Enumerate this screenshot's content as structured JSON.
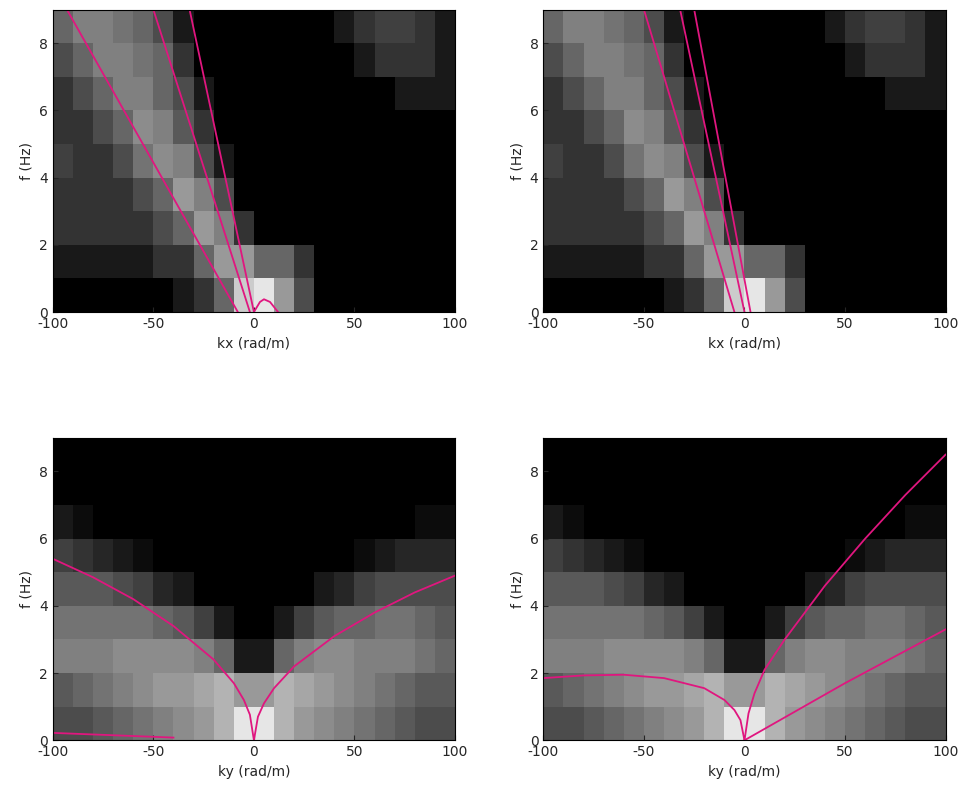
{
  "chart_data": [
    {
      "type": "heatmap",
      "x_label": "kx (rad/m)",
      "y_label": "f (Hz)",
      "xlim": [
        -100,
        100
      ],
      "ylim": [
        0,
        9
      ],
      "xticks": [
        -100,
        -50,
        0,
        50,
        100
      ],
      "yticks": [
        0,
        2,
        4,
        6,
        8
      ],
      "xbins": [
        -100,
        -90,
        -80,
        -70,
        -60,
        -50,
        -40,
        -30,
        -20,
        -10,
        0,
        10,
        20,
        30,
        40,
        50,
        60,
        70,
        80,
        90,
        100
      ],
      "ybins": [
        0,
        1,
        2,
        3,
        4,
        5,
        6,
        7,
        8,
        9
      ],
      "clim": [
        0,
        1
      ],
      "cells": [
        [
          0,
          0,
          0,
          0,
          0,
          0,
          0.1,
          0.2,
          0.4,
          0.8,
          0.9,
          0.6,
          0.3,
          0,
          0,
          0,
          0,
          0,
          0,
          0
        ],
        [
          0.1,
          0.1,
          0.1,
          0.1,
          0.1,
          0.2,
          0.2,
          0.4,
          0.6,
          0.6,
          0.4,
          0.4,
          0.2,
          0,
          0,
          0,
          0,
          0,
          0,
          0
        ],
        [
          0.2,
          0.2,
          0.2,
          0.2,
          0.2,
          0.3,
          0.4,
          0.6,
          0.5,
          0.2,
          0,
          0,
          0,
          0,
          0,
          0,
          0,
          0,
          0,
          0
        ],
        [
          0.2,
          0.2,
          0.2,
          0.2,
          0.3,
          0.4,
          0.6,
          0.5,
          0.3,
          0,
          0,
          0,
          0,
          0,
          0,
          0,
          0,
          0,
          0,
          0
        ],
        [
          0.25,
          0.2,
          0.2,
          0.3,
          0.45,
          0.55,
          0.5,
          0.3,
          0.1,
          0,
          0,
          0,
          0,
          0,
          0,
          0,
          0,
          0,
          0,
          0
        ],
        [
          0.2,
          0.2,
          0.3,
          0.4,
          0.55,
          0.5,
          0.35,
          0.2,
          0,
          0,
          0,
          0,
          0,
          0,
          0,
          0,
          0,
          0,
          0,
          0
        ],
        [
          0.2,
          0.3,
          0.4,
          0.5,
          0.5,
          0.4,
          0.3,
          0.1,
          0,
          0,
          0,
          0,
          0,
          0,
          0,
          0,
          0,
          0.1,
          0.1,
          0.1
        ],
        [
          0.3,
          0.4,
          0.5,
          0.5,
          0.45,
          0.4,
          0.2,
          0,
          0,
          0,
          0,
          0,
          0,
          0,
          0,
          0.1,
          0.2,
          0.2,
          0.2,
          0.1
        ],
        [
          0.4,
          0.5,
          0.5,
          0.45,
          0.4,
          0.3,
          0.1,
          0,
          0,
          0,
          0,
          0,
          0,
          0,
          0.1,
          0.2,
          0.25,
          0.25,
          0.2,
          0.1
        ]
      ],
      "series": [
        {
          "color": "#e0167f",
          "x": [
            -8,
            -93
          ],
          "values": [
            0,
            9
          ]
        },
        {
          "color": "#e0167f",
          "x": [
            -2,
            -50
          ],
          "values": [
            0,
            9
          ]
        },
        {
          "color": "#e0167f",
          "x": [
            0,
            -32
          ],
          "values": [
            0,
            9
          ]
        },
        {
          "color": "#e0167f",
          "x": [
            0,
            3,
            5,
            8,
            12
          ],
          "values": [
            0,
            0.3,
            0.38,
            0.3,
            0
          ]
        }
      ]
    },
    {
      "type": "heatmap",
      "x_label": "kx (rad/m)",
      "y_label": "f (Hz)",
      "xlim": [
        -100,
        100
      ],
      "ylim": [
        0,
        9
      ],
      "xticks": [
        -100,
        -50,
        0,
        50,
        100
      ],
      "yticks": [
        0,
        2,
        4,
        6,
        8
      ],
      "xbins": [
        -100,
        -90,
        -80,
        -70,
        -60,
        -50,
        -40,
        -30,
        -20,
        -10,
        0,
        10,
        20,
        30,
        40,
        50,
        60,
        70,
        80,
        90,
        100
      ],
      "ybins": [
        0,
        1,
        2,
        3,
        4,
        5,
        6,
        7,
        8,
        9
      ],
      "clim": [
        0,
        1
      ],
      "cells": [
        [
          0,
          0,
          0,
          0,
          0,
          0,
          0.1,
          0.2,
          0.4,
          0.8,
          0.9,
          0.6,
          0.3,
          0,
          0,
          0,
          0,
          0,
          0,
          0
        ],
        [
          0.1,
          0.1,
          0.1,
          0.1,
          0.1,
          0.2,
          0.2,
          0.4,
          0.6,
          0.6,
          0.4,
          0.4,
          0.2,
          0,
          0,
          0,
          0,
          0,
          0,
          0
        ],
        [
          0.2,
          0.2,
          0.2,
          0.2,
          0.2,
          0.3,
          0.4,
          0.6,
          0.5,
          0.2,
          0,
          0,
          0,
          0,
          0,
          0,
          0,
          0,
          0,
          0
        ],
        [
          0.2,
          0.2,
          0.2,
          0.2,
          0.3,
          0.4,
          0.6,
          0.5,
          0.3,
          0,
          0,
          0,
          0,
          0,
          0,
          0,
          0,
          0,
          0,
          0
        ],
        [
          0.25,
          0.2,
          0.2,
          0.3,
          0.45,
          0.55,
          0.5,
          0.3,
          0.1,
          0,
          0,
          0,
          0,
          0,
          0,
          0,
          0,
          0,
          0,
          0
        ],
        [
          0.2,
          0.2,
          0.3,
          0.4,
          0.55,
          0.5,
          0.35,
          0.2,
          0,
          0,
          0,
          0,
          0,
          0,
          0,
          0,
          0,
          0,
          0,
          0
        ],
        [
          0.2,
          0.3,
          0.4,
          0.5,
          0.5,
          0.4,
          0.3,
          0.1,
          0,
          0,
          0,
          0,
          0,
          0,
          0,
          0,
          0,
          0.1,
          0.1,
          0.1
        ],
        [
          0.3,
          0.4,
          0.5,
          0.5,
          0.45,
          0.4,
          0.2,
          0,
          0,
          0,
          0,
          0,
          0,
          0,
          0,
          0.1,
          0.2,
          0.2,
          0.2,
          0.1
        ],
        [
          0.4,
          0.5,
          0.5,
          0.45,
          0.4,
          0.3,
          0.1,
          0,
          0,
          0,
          0,
          0,
          0,
          0,
          0.1,
          0.2,
          0.25,
          0.25,
          0.2,
          0.1
        ]
      ],
      "series": [
        {
          "color": "#e0167f",
          "x": [
            -5,
            -50
          ],
          "values": [
            0,
            9
          ]
        },
        {
          "color": "#e0167f",
          "x": [
            0,
            -32
          ],
          "values": [
            0,
            9
          ]
        },
        {
          "color": "#e0167f",
          "x": [
            3,
            -25
          ],
          "values": [
            0,
            9
          ]
        }
      ]
    },
    {
      "type": "heatmap",
      "x_label": "ky (rad/m)",
      "y_label": "f (Hz)",
      "xlim": [
        -100,
        100
      ],
      "ylim": [
        0,
        9
      ],
      "xticks": [
        -100,
        -50,
        0,
        50,
        100
      ],
      "yticks": [
        0,
        2,
        4,
        6,
        8
      ],
      "xbins": [
        -100,
        -90,
        -80,
        -70,
        -60,
        -50,
        -40,
        -30,
        -20,
        -10,
        0,
        10,
        20,
        30,
        40,
        50,
        60,
        70,
        80,
        90,
        100
      ],
      "ybins": [
        0,
        1,
        2,
        3,
        4,
        5,
        6,
        7,
        8,
        9
      ],
      "clim": [
        0,
        1
      ],
      "cells": [
        [
          0.3,
          0.3,
          0.35,
          0.4,
          0.45,
          0.5,
          0.55,
          0.6,
          0.7,
          0.9,
          0.9,
          0.7,
          0.6,
          0.55,
          0.5,
          0.45,
          0.4,
          0.35,
          0.3,
          0.3
        ],
        [
          0.35,
          0.4,
          0.45,
          0.5,
          0.55,
          0.6,
          0.6,
          0.65,
          0.7,
          0.6,
          0.6,
          0.7,
          0.65,
          0.6,
          0.55,
          0.5,
          0.45,
          0.4,
          0.35,
          0.35
        ],
        [
          0.5,
          0.5,
          0.5,
          0.55,
          0.55,
          0.55,
          0.55,
          0.5,
          0.4,
          0.1,
          0.1,
          0.4,
          0.5,
          0.55,
          0.55,
          0.5,
          0.5,
          0.5,
          0.45,
          0.4
        ],
        [
          0.45,
          0.45,
          0.45,
          0.45,
          0.45,
          0.4,
          0.35,
          0.25,
          0.1,
          0,
          0,
          0.1,
          0.25,
          0.35,
          0.4,
          0.4,
          0.45,
          0.45,
          0.4,
          0.35
        ],
        [
          0.35,
          0.35,
          0.35,
          0.3,
          0.25,
          0.15,
          0.1,
          0,
          0,
          0,
          0,
          0,
          0,
          0.1,
          0.15,
          0.25,
          0.3,
          0.3,
          0.3,
          0.3
        ],
        [
          0.25,
          0.2,
          0.15,
          0.1,
          0.05,
          0,
          0,
          0,
          0,
          0,
          0,
          0,
          0,
          0,
          0,
          0.05,
          0.1,
          0.15,
          0.15,
          0.15
        ],
        [
          0.1,
          0.05,
          0,
          0,
          0,
          0,
          0,
          0,
          0,
          0,
          0,
          0,
          0,
          0,
          0,
          0,
          0,
          0,
          0.05,
          0.05
        ],
        [
          0,
          0,
          0,
          0,
          0,
          0,
          0,
          0,
          0,
          0,
          0,
          0,
          0,
          0,
          0,
          0,
          0,
          0,
          0,
          0
        ],
        [
          0,
          0,
          0,
          0,
          0,
          0,
          0,
          0,
          0,
          0,
          0,
          0,
          0,
          0,
          0,
          0,
          0,
          0,
          0,
          0
        ]
      ],
      "series": [
        {
          "color": "#e0167f",
          "x": [
            -100,
            -80,
            -60,
            -40,
            -20,
            -10,
            -5,
            -2,
            0
          ],
          "values": [
            5.4,
            4.85,
            4.2,
            3.4,
            2.4,
            1.7,
            1.2,
            0.76,
            0
          ]
        },
        {
          "color": "#e0167f",
          "x": [
            0,
            2,
            5,
            10,
            20,
            40,
            60,
            80,
            100
          ],
          "values": [
            0,
            0.7,
            1.1,
            1.55,
            2.2,
            3.1,
            3.8,
            4.4,
            4.9
          ]
        },
        {
          "color": "#e0167f",
          "x": [
            -100,
            -40
          ],
          "values": [
            0.22,
            0.08
          ]
        }
      ]
    },
    {
      "type": "heatmap",
      "x_label": "ky (rad/m)",
      "y_label": "f (Hz)",
      "xlim": [
        -100,
        100
      ],
      "ylim": [
        0,
        9
      ],
      "xticks": [
        -100,
        -50,
        0,
        50,
        100
      ],
      "yticks": [
        0,
        2,
        4,
        6,
        8
      ],
      "xbins": [
        -100,
        -90,
        -80,
        -70,
        -60,
        -50,
        -40,
        -30,
        -20,
        -10,
        0,
        10,
        20,
        30,
        40,
        50,
        60,
        70,
        80,
        90,
        100
      ],
      "ybins": [
        0,
        1,
        2,
        3,
        4,
        5,
        6,
        7,
        8,
        9
      ],
      "clim": [
        0,
        1
      ],
      "cells": [
        [
          0.3,
          0.3,
          0.35,
          0.4,
          0.45,
          0.5,
          0.55,
          0.6,
          0.7,
          0.9,
          0.9,
          0.7,
          0.6,
          0.55,
          0.5,
          0.45,
          0.4,
          0.35,
          0.3,
          0.3
        ],
        [
          0.35,
          0.4,
          0.45,
          0.5,
          0.55,
          0.6,
          0.6,
          0.65,
          0.7,
          0.6,
          0.6,
          0.7,
          0.65,
          0.6,
          0.55,
          0.5,
          0.45,
          0.4,
          0.35,
          0.35
        ],
        [
          0.5,
          0.5,
          0.5,
          0.55,
          0.55,
          0.55,
          0.55,
          0.5,
          0.4,
          0.1,
          0.1,
          0.4,
          0.5,
          0.55,
          0.55,
          0.5,
          0.5,
          0.5,
          0.45,
          0.4
        ],
        [
          0.45,
          0.45,
          0.45,
          0.45,
          0.45,
          0.4,
          0.35,
          0.25,
          0.1,
          0,
          0,
          0.1,
          0.25,
          0.35,
          0.4,
          0.4,
          0.45,
          0.45,
          0.4,
          0.35
        ],
        [
          0.35,
          0.35,
          0.35,
          0.3,
          0.25,
          0.15,
          0.1,
          0,
          0,
          0,
          0,
          0,
          0,
          0.1,
          0.15,
          0.25,
          0.3,
          0.3,
          0.3,
          0.3
        ],
        [
          0.25,
          0.2,
          0.15,
          0.1,
          0.05,
          0,
          0,
          0,
          0,
          0,
          0,
          0,
          0,
          0,
          0,
          0.05,
          0.1,
          0.15,
          0.15,
          0.15
        ],
        [
          0.1,
          0.05,
          0,
          0,
          0,
          0,
          0,
          0,
          0,
          0,
          0,
          0,
          0,
          0,
          0,
          0,
          0,
          0,
          0.05,
          0.05
        ],
        [
          0,
          0,
          0,
          0,
          0,
          0,
          0,
          0,
          0,
          0,
          0,
          0,
          0,
          0,
          0,
          0,
          0,
          0,
          0,
          0
        ],
        [
          0,
          0,
          0,
          0,
          0,
          0,
          0,
          0,
          0,
          0,
          0,
          0,
          0,
          0,
          0,
          0,
          0,
          0,
          0,
          0
        ]
      ],
      "series": [
        {
          "color": "#e0167f",
          "x": [
            -100,
            -80,
            -60,
            -40,
            -20,
            -10,
            -5,
            -2,
            0
          ],
          "values": [
            1.85,
            1.93,
            1.95,
            1.85,
            1.55,
            1.2,
            0.9,
            0.6,
            0
          ]
        },
        {
          "color": "#e0167f",
          "x": [
            0,
            2,
            5,
            10,
            20,
            40,
            60,
            80,
            100
          ],
          "values": [
            0,
            0.8,
            1.4,
            2.1,
            3.0,
            4.6,
            6.0,
            7.3,
            8.5
          ]
        },
        {
          "color": "#e0167f",
          "x": [
            0,
            50,
            100
          ],
          "values": [
            0,
            1.7,
            3.3
          ]
        }
      ]
    }
  ]
}
